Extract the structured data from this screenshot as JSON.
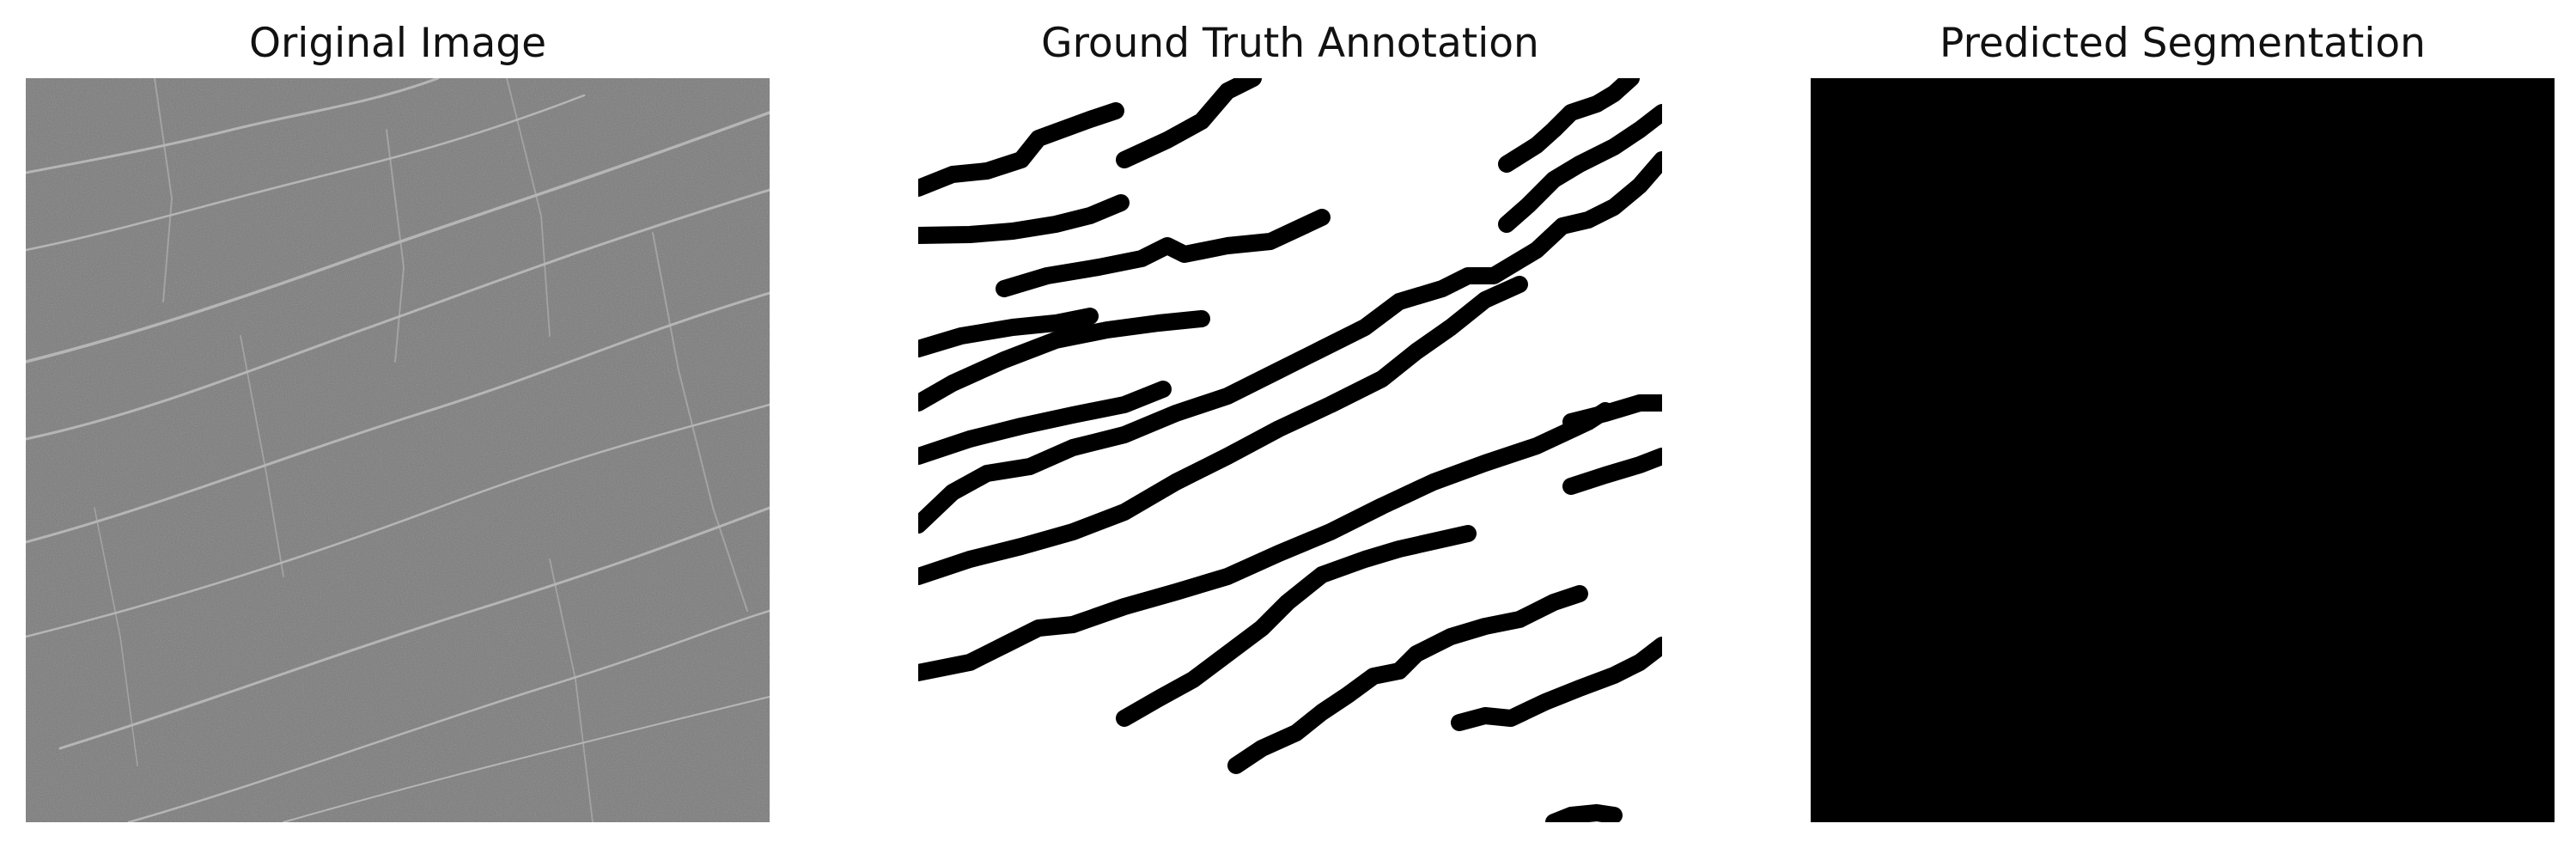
{
  "panels": [
    {
      "title": "Original Image",
      "content": "grayscale-texture"
    },
    {
      "title": "Ground Truth Annotation",
      "content": "binary-mask-strokes"
    },
    {
      "title": "Predicted Segmentation",
      "content": "solid-black-mask"
    }
  ],
  "colors": {
    "background": "#ffffff",
    "texture_base": "#7a7a7a",
    "texture_highlight": "#c9c9c9",
    "mask_foreground": "#000000",
    "mask_background": "#ffffff"
  }
}
